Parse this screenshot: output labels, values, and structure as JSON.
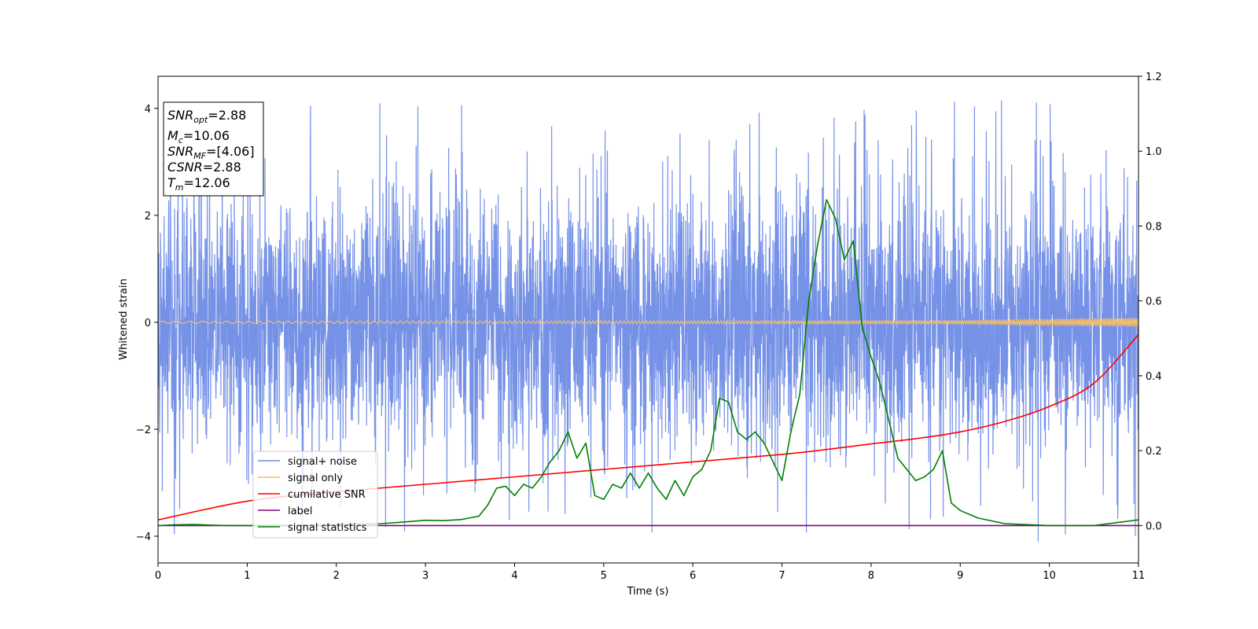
{
  "chart_data": {
    "type": "line",
    "xlabel": "Time (s)",
    "ylabel": "Whitened strain",
    "xlim": [
      0,
      11
    ],
    "ylim": [
      -4.5,
      4.6
    ],
    "y2lim": [
      -0.1,
      1.2
    ],
    "x_ticks": [
      "0",
      "1",
      "2",
      "3",
      "4",
      "5",
      "6",
      "7",
      "8",
      "9",
      "10",
      "11"
    ],
    "y_ticks": [
      "−4",
      "−2",
      "0",
      "2",
      "4"
    ],
    "y2_ticks": [
      "0.0",
      "0.2",
      "0.4",
      "0.6",
      "0.8",
      "1.0",
      "1.2"
    ],
    "annotation": {
      "lines": [
        {
          "main": "SNR",
          "sub": "opt",
          "value": "=2.88"
        },
        {
          "main": "M",
          "sub": "c",
          "value": "=10.06"
        },
        {
          "main": "SNR",
          "sub": "MF",
          "value": "=[4.06]"
        },
        {
          "main": "CSNR",
          "sub": "",
          "value": "=2.88"
        },
        {
          "main": "T",
          "sub": "m",
          "value": "=12.06"
        }
      ]
    },
    "legend_position": "lower-left",
    "series": [
      {
        "name": "signal+ noise",
        "axis": "left",
        "color": "#6f8ce6",
        "noise_band": [
          -1.5,
          1.5
        ],
        "peak_range": [
          -4.1,
          4.15
        ]
      },
      {
        "name": "signal only",
        "axis": "left",
        "color": "#f6be66",
        "amplitude_growth": [
          [
            0,
            0.02
          ],
          [
            9,
            0.03
          ],
          [
            11,
            0.08
          ]
        ]
      },
      {
        "name": "cumilative SNR",
        "axis": "right",
        "color": "#ff0000",
        "x": [
          0,
          1,
          2,
          3,
          4,
          5,
          6,
          7,
          7.5,
          8,
          8.5,
          9,
          9.5,
          10,
          10.5,
          11
        ],
        "values": [
          0.015,
          0.065,
          0.09,
          0.11,
          0.13,
          0.15,
          0.17,
          0.19,
          0.203,
          0.218,
          0.232,
          0.25,
          0.278,
          0.318,
          0.38,
          0.51
        ]
      },
      {
        "name": "label",
        "axis": "right",
        "color": "#800080",
        "x": [
          0,
          11
        ],
        "values": [
          0,
          0
        ]
      },
      {
        "name": "signal statistics",
        "axis": "right",
        "color": "#008000",
        "x": [
          0,
          0.2,
          0.4,
          0.6,
          0.8,
          1,
          1.5,
          2,
          2.5,
          2.8,
          3,
          3.2,
          3.4,
          3.6,
          3.7,
          3.8,
          3.9,
          4,
          4.1,
          4.2,
          4.3,
          4.4,
          4.5,
          4.6,
          4.7,
          4.8,
          4.9,
          5,
          5.1,
          5.2,
          5.3,
          5.4,
          5.5,
          5.6,
          5.7,
          5.8,
          5.9,
          6,
          6.1,
          6.2,
          6.3,
          6.4,
          6.5,
          6.6,
          6.7,
          6.8,
          6.9,
          7,
          7.1,
          7.2,
          7.3,
          7.4,
          7.5,
          7.6,
          7.7,
          7.8,
          7.9,
          8,
          8.1,
          8.2,
          8.3,
          8.4,
          8.5,
          8.6,
          8.7,
          8.8,
          8.9,
          9,
          9.2,
          9.5,
          10,
          10.5,
          11
        ],
        "values": [
          0.0,
          0.002,
          0.003,
          0.001,
          0.0,
          0.0,
          0.0,
          0.002,
          0.005,
          0.01,
          0.014,
          0.013,
          0.016,
          0.025,
          0.055,
          0.1,
          0.105,
          0.08,
          0.11,
          0.1,
          0.13,
          0.17,
          0.2,
          0.25,
          0.18,
          0.22,
          0.08,
          0.07,
          0.11,
          0.1,
          0.14,
          0.1,
          0.14,
          0.1,
          0.07,
          0.12,
          0.08,
          0.13,
          0.15,
          0.2,
          0.34,
          0.33,
          0.25,
          0.23,
          0.25,
          0.22,
          0.17,
          0.12,
          0.25,
          0.35,
          0.6,
          0.75,
          0.87,
          0.82,
          0.71,
          0.76,
          0.53,
          0.45,
          0.38,
          0.28,
          0.18,
          0.15,
          0.12,
          0.13,
          0.15,
          0.2,
          0.06,
          0.04,
          0.02,
          0.005,
          0.0,
          0.0,
          0.015
        ]
      }
    ]
  }
}
